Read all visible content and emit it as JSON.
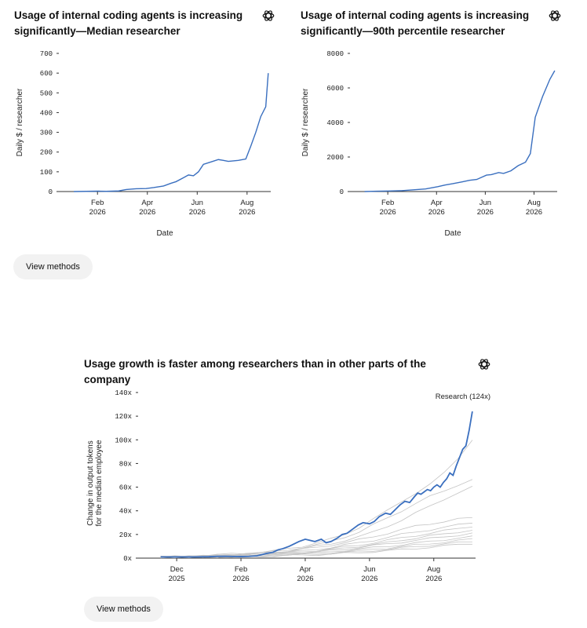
{
  "brand_logo": "openai-logo-icon",
  "colors": {
    "accent": "#3a6fbf",
    "gray_lines": "#c4c4c4",
    "text": "#111111",
    "button_bg": "#f2f2f2"
  },
  "charts": {
    "chart1": {
      "title_line1": "Usage of internal coding agents is increasing",
      "title_line2": "significantly—Median researcher"
    },
    "chart2": {
      "title_line1": "Usage of internal coding agents is increasing",
      "title_line2": "significantly—90th percentile researcher"
    },
    "chart3": {
      "title": "Usage growth is faster among researchers than in other parts of the company"
    }
  },
  "buttons": {
    "view_methods_1": "View methods",
    "view_methods_2": "View methods"
  },
  "chart_data": [
    {
      "type": "line",
      "title": "Usage of internal coding agents is increasing significantly—Median researcher",
      "xlabel": "Date",
      "ylabel": "Daily $ / researcher",
      "ylim": [
        0,
        700
      ],
      "yticks": [
        "0",
        "100",
        "200",
        "300",
        "400",
        "500",
        "600",
        "700"
      ],
      "xticks": [
        {
          "line1": "Feb",
          "line2": "2026"
        },
        {
          "line1": "Apr",
          "line2": "2026"
        },
        {
          "line1": "Jun",
          "line2": "2026"
        },
        {
          "line1": "Aug",
          "line2": "2026"
        }
      ],
      "x_months": [
        0.0,
        0.5,
        1.0,
        1.3,
        1.8,
        2.1,
        2.5,
        2.9,
        3.2,
        3.6,
        3.9,
        4.1,
        4.4,
        4.6,
        4.8,
        5.0,
        5.2,
        5.5,
        5.8,
        6.0,
        6.2,
        6.6,
        6.9,
        7.1,
        7.3,
        7.5,
        7.7
      ],
      "x_ref": "2026-01-01 (months)",
      "values": [
        0,
        1,
        2,
        1,
        3,
        10,
        14,
        15,
        20,
        28,
        42,
        50,
        70,
        84,
        80,
        100,
        138,
        150,
        162,
        158,
        153,
        158,
        165,
        230,
        300,
        380,
        430
      ],
      "x_end_months": 7.8,
      "y_end": 600,
      "grid": false,
      "series": [
        {
          "values_ref": "values",
          "color": "#3a6fbf"
        }
      ]
    },
    {
      "type": "line",
      "title": "Usage of internal coding agents is increasing significantly—90th percentile researcher",
      "xlabel": "Date",
      "ylabel": "Daily $ / researcher",
      "ylim": [
        0,
        8000
      ],
      "yticks": [
        "0",
        "2000",
        "4000",
        "6000",
        "8000"
      ],
      "xticks": [
        {
          "line1": "Feb",
          "line2": "2026"
        },
        {
          "line1": "Apr",
          "line2": "2026"
        },
        {
          "line1": "Jun",
          "line2": "2026"
        },
        {
          "line1": "Aug",
          "line2": "2026"
        }
      ],
      "x_months": [
        0.0,
        0.5,
        1.0,
        1.5,
        2.0,
        2.5,
        3.0,
        3.3,
        3.6,
        4.0,
        4.3,
        4.6,
        5.0,
        5.2,
        5.5,
        5.7,
        6.0,
        6.3,
        6.6,
        6.8,
        7.0,
        7.3,
        7.6
      ],
      "values": [
        0,
        20,
        30,
        50,
        100,
        150,
        280,
        380,
        450,
        560,
        650,
        700,
        950,
        980,
        1100,
        1050,
        1200,
        1500,
        1700,
        2200,
        4300,
        5500,
        6500
      ],
      "x_end_months": 7.8,
      "y_end": 7000,
      "grid": false
    },
    {
      "type": "line",
      "ylabel_line1": "Change in output tokens",
      "ylabel_line2": "for the median employee",
      "ylim": [
        0,
        140
      ],
      "yticks": [
        "0x",
        "20x",
        "40x",
        "60x",
        "80x",
        "100x",
        "120x",
        "140x"
      ],
      "xticks": [
        {
          "line1": "Dec",
          "line2": "2025"
        },
        {
          "line1": "Feb",
          "line2": "2026"
        },
        {
          "line1": "Apr",
          "line2": "2026"
        },
        {
          "line1": "Jun",
          "line2": "2026"
        },
        {
          "line1": "Aug",
          "line2": "2026"
        }
      ],
      "annotation": "Research (124x)",
      "highlight": {
        "name": "Research (124x)",
        "color": "#3a6fbf",
        "x_months": [
          0,
          1,
          2,
          3,
          3.5,
          4,
          4.5,
          5,
          5.5,
          6,
          6.3,
          6.6,
          7,
          7.3,
          7.6,
          8,
          8.3,
          8.6,
          9,
          9.3,
          9.6,
          10,
          10.3,
          10.6,
          11,
          11.3,
          11.6,
          12,
          12.3,
          12.6,
          13,
          13.3,
          13.6,
          14,
          14.3,
          14.6,
          14.9,
          15.2,
          15.5,
          15.8,
          16.0,
          16.2,
          16.4,
          16.6,
          16.8,
          17.0,
          17.2,
          17.4,
          17.6,
          17.8,
          18.0,
          18.2,
          18.4,
          18.6,
          18.8,
          19.0,
          19.2,
          19.4
        ],
        "values": [
          1,
          1,
          1,
          1.2,
          1.5,
          1.6,
          1.4,
          1.3,
          1.5,
          2,
          3,
          4,
          5,
          7,
          8,
          10,
          12,
          14,
          16,
          15,
          14,
          16,
          13,
          14,
          17,
          20,
          21,
          25,
          28,
          30,
          29,
          31,
          35,
          38,
          37,
          41,
          45,
          48,
          47,
          52,
          55,
          54,
          56,
          58,
          57,
          60,
          62,
          60,
          64,
          67,
          72,
          70,
          78,
          85,
          92,
          95,
          108,
          124
        ]
      },
      "others": [
        {
          "color": "#c4c4c4",
          "values": [
            1,
            1.3,
            1.5,
            2,
            2.8,
            3.5,
            4,
            5,
            6,
            8,
            10,
            13,
            16,
            20,
            26,
            33,
            40,
            48,
            55,
            62,
            72,
            85,
            100
          ]
        },
        {
          "color": "#c4c4c4",
          "values": [
            1,
            1.2,
            1.4,
            1.8,
            2.5,
            3,
            3.5,
            4.5,
            5.5,
            7,
            9,
            11,
            14,
            18,
            22,
            28,
            34,
            40,
            46,
            52,
            57,
            62,
            66
          ]
        },
        {
          "color": "#c4c4c4",
          "values": [
            1,
            1.1,
            1.3,
            1.6,
            2.2,
            2.8,
            3.2,
            4,
            5,
            6,
            8,
            10,
            12,
            15,
            18,
            22,
            27,
            32,
            38,
            44,
            50,
            55,
            60
          ]
        },
        {
          "color": "#c4c4c4",
          "values": [
            1,
            1.2,
            1.4,
            1.7,
            2.3,
            3,
            3.5,
            4.2,
            5,
            6,
            7.5,
            9,
            11,
            13,
            15.5,
            18,
            21,
            24,
            27,
            29,
            31,
            33,
            34
          ]
        },
        {
          "color": "#c4c4c4",
          "values": [
            1,
            1.1,
            1.3,
            1.5,
            2,
            2.5,
            3,
            3.6,
            4.3,
            5,
            6,
            7.5,
            9,
            11,
            13,
            15,
            17.5,
            20,
            22,
            24,
            26,
            28,
            30
          ]
        },
        {
          "color": "#c4c4c4",
          "values": [
            1,
            1.1,
            1.2,
            1.4,
            1.8,
            2.2,
            2.6,
            3.1,
            3.7,
            4.4,
            5.3,
            6.5,
            8,
            9.5,
            11,
            13,
            15,
            17,
            19,
            21,
            23,
            25,
            27
          ]
        },
        {
          "color": "#c4c4c4",
          "values": [
            1,
            1.05,
            1.15,
            1.3,
            1.6,
            2,
            2.4,
            2.9,
            3.4,
            4,
            4.8,
            5.8,
            7,
            8.5,
            10,
            11.5,
            13,
            15,
            17,
            19,
            20,
            22,
            24
          ]
        },
        {
          "color": "#c4c4c4",
          "values": [
            1,
            1.05,
            1.1,
            1.25,
            1.5,
            1.8,
            2.2,
            2.6,
            3.1,
            3.7,
            4.4,
            5.3,
            6.4,
            7.6,
            9,
            10.5,
            12,
            13.5,
            15,
            16.5,
            18,
            19.5,
            21
          ]
        },
        {
          "color": "#c4c4c4",
          "values": [
            1,
            1.05,
            1.1,
            1.2,
            1.4,
            1.7,
            2,
            2.4,
            2.8,
            3.3,
            3.9,
            4.6,
            5.5,
            6.5,
            7.6,
            8.8,
            10,
            11.3,
            12.6,
            14,
            15.5,
            17,
            18
          ]
        },
        {
          "color": "#c4c4c4",
          "values": [
            1,
            1.03,
            1.08,
            1.15,
            1.3,
            1.5,
            1.8,
            2.1,
            2.5,
            3,
            3.5,
            4.1,
            4.8,
            5.6,
            6.5,
            7.5,
            8.6,
            9.8,
            11,
            12.2,
            13.5,
            14.8,
            16
          ]
        },
        {
          "color": "#c4c4c4",
          "values": [
            1,
            1.02,
            1.05,
            1.1,
            1.2,
            1.35,
            1.55,
            1.8,
            2.1,
            2.5,
            2.9,
            3.4,
            4,
            4.7,
            5.5,
            6.4,
            7.4,
            8.5,
            9.6,
            10.8,
            12,
            13,
            14
          ]
        },
        {
          "color": "#c4c4c4",
          "values": [
            1,
            1.02,
            1.04,
            1.08,
            1.15,
            1.25,
            1.4,
            1.6,
            1.85,
            2.15,
            2.5,
            2.9,
            3.4,
            4,
            4.7,
            5.5,
            6.3,
            7.2,
            8.2,
            9.2,
            10.3,
            11.4,
            12.5
          ]
        }
      ],
      "others_x_start_months": 0,
      "others_x_end_months": 19.4,
      "grid": false
    }
  ]
}
